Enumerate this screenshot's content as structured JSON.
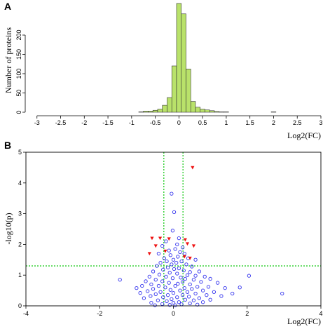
{
  "chart_data": [
    {
      "panel": "A",
      "type": "bar",
      "xlabel": "Log2(FC)",
      "ylabel": "Number of proteins",
      "xlim": [
        -3.1,
        3.0
      ],
      "ylim": [
        0,
        280
      ],
      "x_ticks": [
        -3,
        -2.5,
        -2,
        -1.5,
        -1,
        -0.5,
        0,
        0.5,
        1,
        1.5,
        2,
        2.5,
        3
      ],
      "x_tick_labels": [
        "-3",
        "-2.5",
        "-2",
        "-1.5",
        "-1",
        "-0.5",
        "0",
        "0.5",
        "1",
        "1.5",
        "2",
        "2.5",
        "3"
      ],
      "y_ticks": [
        0,
        50,
        100,
        150,
        200
      ],
      "y_tick_labels": [
        "0",
        "50",
        "100",
        "150",
        "200"
      ],
      "bar_color": "#b9e26a",
      "bin_width": 0.1,
      "bins": [
        {
          "x": -3.0,
          "value": 0
        },
        {
          "x": -2.9,
          "value": 0
        },
        {
          "x": -2.8,
          "value": 0
        },
        {
          "x": -2.7,
          "value": 0
        },
        {
          "x": -2.6,
          "value": 0
        },
        {
          "x": -2.5,
          "value": 0
        },
        {
          "x": -2.4,
          "value": 0
        },
        {
          "x": -2.3,
          "value": 0
        },
        {
          "x": -2.2,
          "value": 0
        },
        {
          "x": -2.1,
          "value": 0
        },
        {
          "x": -2.0,
          "value": 0
        },
        {
          "x": -1.9,
          "value": 0
        },
        {
          "x": -1.8,
          "value": 0
        },
        {
          "x": -1.7,
          "value": 0
        },
        {
          "x": -1.6,
          "value": 0
        },
        {
          "x": -1.5,
          "value": 0
        },
        {
          "x": -1.4,
          "value": 0
        },
        {
          "x": -1.3,
          "value": 0
        },
        {
          "x": -1.2,
          "value": 0
        },
        {
          "x": -1.1,
          "value": 0
        },
        {
          "x": -1.0,
          "value": 0
        },
        {
          "x": -0.9,
          "value": 0
        },
        {
          "x": -0.8,
          "value": 1
        },
        {
          "x": -0.7,
          "value": 3
        },
        {
          "x": -0.6,
          "value": 3
        },
        {
          "x": -0.5,
          "value": 5
        },
        {
          "x": -0.4,
          "value": 8
        },
        {
          "x": -0.3,
          "value": 18
        },
        {
          "x": -0.2,
          "value": 38
        },
        {
          "x": -0.1,
          "value": 120
        },
        {
          "x": 0.0,
          "value": 282
        },
        {
          "x": 0.1,
          "value": 255
        },
        {
          "x": 0.2,
          "value": 112
        },
        {
          "x": 0.3,
          "value": 28
        },
        {
          "x": 0.4,
          "value": 13
        },
        {
          "x": 0.5,
          "value": 8
        },
        {
          "x": 0.6,
          "value": 6
        },
        {
          "x": 0.7,
          "value": 4
        },
        {
          "x": 0.8,
          "value": 2
        },
        {
          "x": 0.9,
          "value": 1
        },
        {
          "x": 1.0,
          "value": 1
        },
        {
          "x": 1.1,
          "value": 0
        },
        {
          "x": 1.2,
          "value": 0
        },
        {
          "x": 1.3,
          "value": 0
        },
        {
          "x": 1.4,
          "value": 0
        },
        {
          "x": 1.5,
          "value": 0
        },
        {
          "x": 1.6,
          "value": 0
        },
        {
          "x": 1.7,
          "value": 0
        },
        {
          "x": 1.8,
          "value": 0
        },
        {
          "x": 1.9,
          "value": 0
        },
        {
          "x": 2.0,
          "value": 1
        },
        {
          "x": 2.1,
          "value": 0
        },
        {
          "x": 2.2,
          "value": 0
        },
        {
          "x": 2.3,
          "value": 0
        },
        {
          "x": 2.4,
          "value": 0
        },
        {
          "x": 2.5,
          "value": 0
        },
        {
          "x": 2.6,
          "value": 0
        },
        {
          "x": 2.7,
          "value": 0
        },
        {
          "x": 2.8,
          "value": 0
        },
        {
          "x": 2.9,
          "value": 0
        }
      ]
    },
    {
      "panel": "B",
      "type": "scatter",
      "xlabel": "Log2(FC)",
      "ylabel": "-log10(p)",
      "xlim": [
        -4,
        4
      ],
      "ylim": [
        0,
        5
      ],
      "x_ticks": [
        -4,
        -2,
        0,
        2,
        4
      ],
      "x_tick_labels": [
        "-4",
        "-2",
        "0",
        "2",
        "4"
      ],
      "y_ticks": [
        0,
        1,
        2,
        3,
        4,
        5
      ],
      "y_tick_labels": [
        "0",
        "1",
        "2",
        "3",
        "4",
        "5"
      ],
      "threshold_lines": {
        "color": "#22cc22",
        "vertical": [
          -0.26,
          0.26
        ],
        "horizontal": 1.3
      },
      "series": [
        {
          "marker": "circle-open",
          "color": "#3333ee",
          "points": [
            [
              -0.05,
              3.65
            ],
            [
              0.02,
              3.05
            ],
            [
              -0.02,
              2.45
            ],
            [
              0.15,
              2.2
            ],
            [
              -0.2,
              2.1
            ],
            [
              0.1,
              2.0
            ],
            [
              -0.3,
              1.95
            ],
            [
              0.25,
              1.9
            ],
            [
              0.05,
              1.85
            ],
            [
              -0.12,
              1.8
            ],
            [
              0.18,
              1.75
            ],
            [
              -0.4,
              1.7
            ],
            [
              0.3,
              1.7
            ],
            [
              -0.08,
              1.65
            ],
            [
              0.12,
              1.6
            ],
            [
              -0.25,
              1.55
            ],
            [
              0.4,
              1.55
            ],
            [
              0.0,
              1.5
            ],
            [
              -0.18,
              1.45
            ],
            [
              0.22,
              1.45
            ],
            [
              0.6,
              1.5
            ],
            [
              -0.35,
              1.4
            ],
            [
              0.08,
              1.4
            ],
            [
              -0.05,
              1.35
            ],
            [
              0.35,
              1.35
            ],
            [
              -0.45,
              1.3
            ],
            [
              0.5,
              1.28
            ],
            [
              -0.15,
              1.25
            ],
            [
              0.15,
              1.22
            ],
            [
              0.02,
              1.2
            ],
            [
              -0.28,
              1.18
            ],
            [
              0.28,
              1.15
            ],
            [
              -0.55,
              1.12
            ],
            [
              0.45,
              1.1
            ],
            [
              0.7,
              1.12
            ],
            [
              -0.1,
              1.08
            ],
            [
              0.1,
              1.05
            ],
            [
              -0.38,
              1.02
            ],
            [
              0.38,
              1.0
            ],
            [
              0.6,
              0.98
            ],
            [
              -0.65,
              0.95
            ],
            [
              -0.2,
              0.95
            ],
            [
              0.2,
              0.92
            ],
            [
              0.85,
              0.95
            ],
            [
              -0.02,
              0.9
            ],
            [
              0.32,
              0.88
            ],
            [
              -0.48,
              0.85
            ],
            [
              0.55,
              0.85
            ],
            [
              1.0,
              0.88
            ],
            [
              -0.75,
              0.8
            ],
            [
              -0.3,
              0.8
            ],
            [
              0.25,
              0.78
            ],
            [
              0.75,
              0.78
            ],
            [
              -0.12,
              0.75
            ],
            [
              0.12,
              0.72
            ],
            [
              -0.6,
              0.7
            ],
            [
              0.45,
              0.7
            ],
            [
              1.2,
              0.75
            ],
            [
              -0.85,
              0.65
            ],
            [
              -0.4,
              0.65
            ],
            [
              0.05,
              0.65
            ],
            [
              0.65,
              0.62
            ],
            [
              0.95,
              0.62
            ],
            [
              -0.22,
              0.6
            ],
            [
              0.3,
              0.58
            ],
            [
              -1.0,
              0.58
            ],
            [
              -0.55,
              0.55
            ],
            [
              0.5,
              0.55
            ],
            [
              1.4,
              0.58
            ],
            [
              -0.08,
              0.52
            ],
            [
              0.18,
              0.5
            ],
            [
              0.8,
              0.5
            ],
            [
              -0.7,
              0.48
            ],
            [
              -0.35,
              0.45
            ],
            [
              0.38,
              0.45
            ],
            [
              1.1,
              0.45
            ],
            [
              -0.9,
              0.42
            ],
            [
              0.0,
              0.42
            ],
            [
              0.6,
              0.4
            ],
            [
              1.6,
              0.4
            ],
            [
              -0.48,
              0.38
            ],
            [
              -0.15,
              0.35
            ],
            [
              0.25,
              0.35
            ],
            [
              0.9,
              0.35
            ],
            [
              -0.62,
              0.32
            ],
            [
              0.42,
              0.3
            ],
            [
              1.3,
              0.32
            ],
            [
              -0.28,
              0.28
            ],
            [
              0.1,
              0.28
            ],
            [
              0.7,
              0.25
            ],
            [
              -0.8,
              0.25
            ],
            [
              -0.05,
              0.22
            ],
            [
              0.32,
              0.2
            ],
            [
              1.0,
              0.2
            ],
            [
              -0.42,
              0.18
            ],
            [
              0.55,
              0.18
            ],
            [
              -0.18,
              0.15
            ],
            [
              0.15,
              0.12
            ],
            [
              0.8,
              0.12
            ],
            [
              -0.6,
              0.1
            ],
            [
              0.0,
              0.1
            ],
            [
              0.45,
              0.08
            ],
            [
              -0.3,
              0.06
            ],
            [
              0.22,
              0.05
            ],
            [
              0.65,
              0.04
            ],
            [
              -0.1,
              0.03
            ],
            [
              0.05,
              0.02
            ],
            [
              -0.5,
              0.02
            ],
            [
              2.05,
              0.98
            ],
            [
              2.95,
              0.4
            ],
            [
              -1.45,
              0.85
            ],
            [
              1.8,
              0.6
            ]
          ]
        },
        {
          "marker": "triangle-down-filled",
          "color": "#ee1111",
          "points": [
            [
              0.52,
              4.5
            ],
            [
              -0.58,
              2.2
            ],
            [
              -0.48,
              1.95
            ],
            [
              -0.36,
              2.2
            ],
            [
              -0.12,
              2.18
            ],
            [
              0.32,
              2.15
            ],
            [
              0.38,
              2.02
            ],
            [
              0.55,
              1.95
            ],
            [
              0.45,
              1.55
            ],
            [
              -0.22,
              1.78
            ],
            [
              -0.65,
              1.7
            ],
            [
              0.3,
              1.6
            ]
          ]
        }
      ]
    }
  ]
}
